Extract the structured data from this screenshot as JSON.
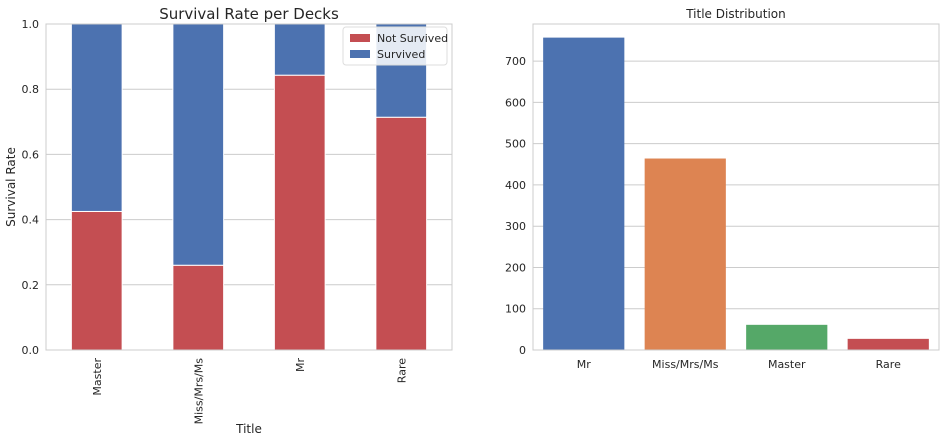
{
  "chart_data": [
    {
      "type": "bar",
      "stacked": true,
      "title": "Survival Rate per Decks",
      "xlabel": "Title",
      "ylabel": "Survival Rate",
      "categories": [
        "Master",
        "Miss/Mrs/Ms",
        "Mr",
        "Rare"
      ],
      "ylim": [
        0,
        1.0
      ],
      "yticks": [
        "0.0",
        "0.2",
        "0.4",
        "0.6",
        "0.8",
        "1.0"
      ],
      "series": [
        {
          "name": "Not Survived",
          "color": "#c44e52",
          "values": [
            0.425,
            0.26,
            0.843,
            0.714
          ]
        },
        {
          "name": "Survived",
          "color": "#4c72b0",
          "values": [
            0.575,
            0.74,
            0.157,
            0.286
          ]
        }
      ],
      "legend": "top-right",
      "grid": "y"
    },
    {
      "type": "bar",
      "title": "Title Distribution",
      "xlabel": "",
      "ylabel": "",
      "categories": [
        "Mr",
        "Miss/Mrs/Ms",
        "Master",
        "Rare"
      ],
      "values": [
        757,
        464,
        61,
        27
      ],
      "colors": [
        "#4c72b0",
        "#dd8452",
        "#55a868",
        "#c44e52"
      ],
      "ylim": [
        0,
        790
      ],
      "yticks": [
        "0",
        "100",
        "200",
        "300",
        "400",
        "500",
        "600",
        "700"
      ],
      "grid": "y"
    }
  ]
}
